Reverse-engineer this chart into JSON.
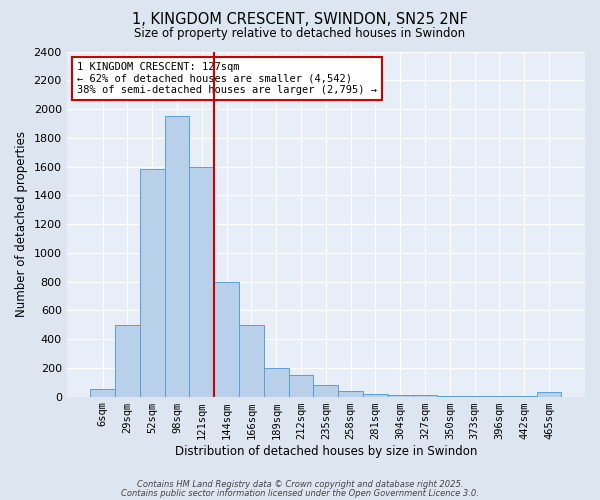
{
  "title": "1, KINGDOM CRESCENT, SWINDON, SN25 2NF",
  "subtitle": "Size of property relative to detached houses in Swindon",
  "xlabel": "Distribution of detached houses by size in Swindon",
  "ylabel": "Number of detached properties",
  "bar_values": [
    50,
    500,
    1580,
    1950,
    1600,
    800,
    500,
    200,
    150,
    80,
    40,
    20,
    10,
    10,
    5,
    5,
    5,
    5,
    30
  ],
  "bar_labels": [
    "6sqm",
    "29sqm",
    "52sqm",
    "98sqm",
    "121sqm",
    "144sqm",
    "166sqm",
    "189sqm",
    "212sqm",
    "235sqm",
    "258sqm",
    "281sqm",
    "304sqm",
    "327sqm",
    "350sqm",
    "373sqm",
    "396sqm",
    "442sqm",
    "465sqm"
  ],
  "bar_color": "#b8d0ea",
  "bar_edgecolor": "#5a9fd4",
  "background_color": "#dde6f0",
  "plot_bg_color": "#e8eef8",
  "grid_color": "#ffffff",
  "red_line_x": 4.5,
  "annotation_text": "1 KINGDOM CRESCENT: 127sqm\n← 62% of detached houses are smaller (4,542)\n38% of semi-detached houses are larger (2,795) →",
  "annotation_box_color": "#ffffff",
  "annotation_box_edgecolor": "#cc0000",
  "ylim": [
    0,
    2400
  ],
  "yticks": [
    0,
    200,
    400,
    600,
    800,
    1000,
    1200,
    1400,
    1600,
    1800,
    2000,
    2200,
    2400
  ],
  "footer1": "Contains HM Land Registry data © Crown copyright and database right 2025.",
  "footer2": "Contains public sector information licensed under the Open Government Licence 3.0."
}
